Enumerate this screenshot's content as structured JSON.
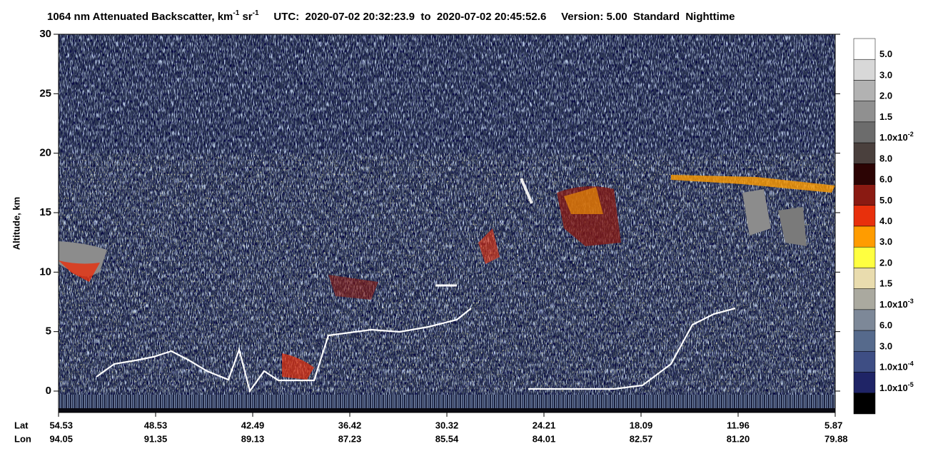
{
  "chart_data": {
    "type": "curtain",
    "title_parts": [
      {
        "text": "1064 nm Attenuated Backscatter, km"
      },
      {
        "sup": "-1"
      },
      {
        "text": " sr"
      },
      {
        "sup": "-1"
      },
      {
        "text": "     UTC:  2020-07-02 20:32:23.9  to  2020-07-02 20:45:52.6     Version: 5.00  Standard  Nighttime"
      }
    ],
    "y_label": "Altitude, km",
    "ylim": [
      -1.8,
      30
    ],
    "yticks": [
      0,
      5,
      10,
      15,
      20,
      25,
      30
    ],
    "x_rows": [
      {
        "name": "Lat",
        "values": [
          54.53,
          48.53,
          42.49,
          36.42,
          30.32,
          24.21,
          18.09,
          11.96,
          5.87
        ]
      },
      {
        "name": "Lon",
        "values": [
          94.05,
          91.35,
          89.13,
          87.23,
          85.54,
          84.01,
          82.57,
          {
            "value": 81.2,
            "label": "81.20"
          },
          79.88
        ]
      }
    ],
    "colorbar": {
      "colors": [
        "#ffffff",
        "#d8d8d8",
        "#b2b2b2",
        "#909090",
        "#6c6c6c",
        "#4a403d",
        "#2c0404",
        "#8a1a12",
        "#e8300c",
        "#ff9c00",
        "#ffff40",
        "#e9dcae",
        "#aaa99f",
        "#7d8898",
        "#566a8c",
        "#3e4e84",
        "#1f2466",
        "#000000"
      ],
      "labels": [
        {
          "text": "5.0"
        },
        {
          "text": "3.0"
        },
        {
          "text": "2.0"
        },
        {
          "text": "1.5"
        },
        {
          "text": "1.0x10",
          "sup": "-2"
        },
        {
          "text": "8.0"
        },
        {
          "text": "6.0"
        },
        {
          "text": "5.0"
        },
        {
          "text": "4.0"
        },
        {
          "text": "3.0"
        },
        {
          "text": "2.0"
        },
        {
          "text": "1.5"
        },
        {
          "text": "1.0x10",
          "sup": "-3"
        },
        {
          "text": "6.0"
        },
        {
          "text": "3.0"
        },
        {
          "text": "1.0x10",
          "sup": "-4"
        },
        {
          "text": "1.0x10",
          "sup": "-5"
        }
      ]
    }
  }
}
